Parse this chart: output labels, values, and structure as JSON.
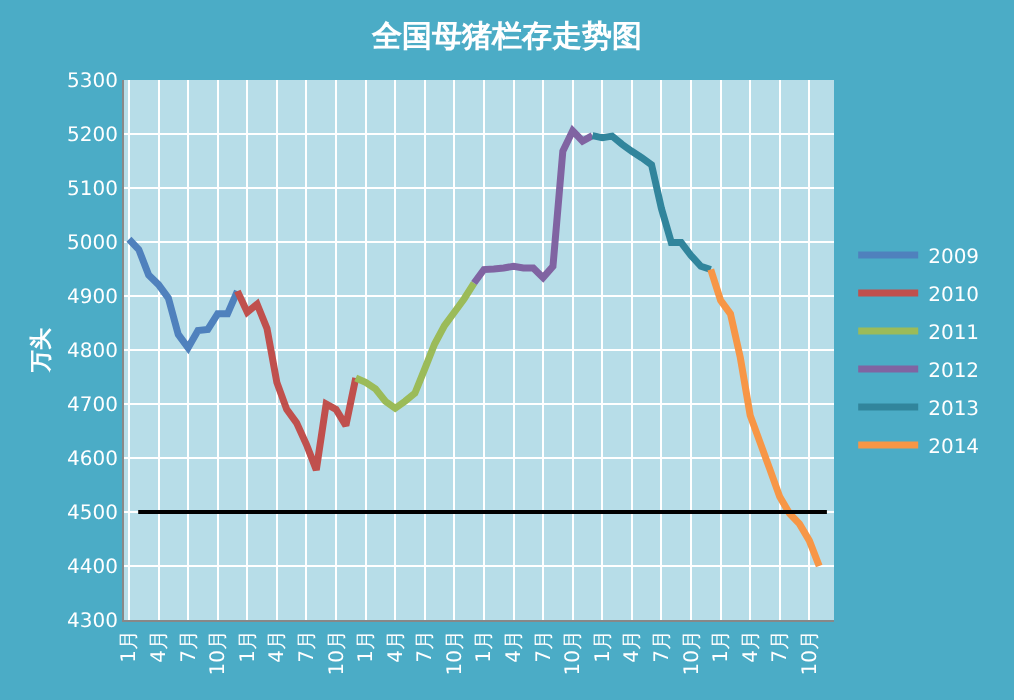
{
  "chart_data": {
    "type": "line",
    "title": "全国母猪栏存走势图",
    "ylabel": "万头",
    "categories": [
      "1月",
      null,
      null,
      "4月",
      null,
      null,
      "7月",
      null,
      null,
      "10月",
      null,
      null,
      "1月",
      null,
      null,
      "4月",
      null,
      null,
      "7月",
      null,
      null,
      "10月",
      null,
      null,
      "1月",
      null,
      null,
      "4月",
      null,
      null,
      "7月",
      null,
      null,
      "10月",
      null,
      null,
      "1月",
      null,
      null,
      "4月",
      null,
      null,
      "7月",
      null,
      null,
      "10月",
      null,
      null,
      "1月",
      null,
      null,
      "4月",
      null,
      null,
      "7月",
      null,
      null,
      "10月",
      null,
      null,
      "1月",
      null,
      null,
      "4月",
      null,
      null,
      "7月",
      null,
      null,
      "10月",
      null,
      null
    ],
    "series": [
      {
        "name": "2009",
        "color": "#4f81bd",
        "values": [
          5005,
          4986,
          4939,
          4921,
          4896,
          4829,
          4804,
          4836,
          4838,
          4867,
          4867,
          4909,
          null,
          null,
          null,
          null,
          null,
          null,
          null,
          null,
          null,
          null,
          null,
          null,
          null,
          null,
          null,
          null,
          null,
          null,
          null,
          null,
          null,
          null,
          null,
          null,
          null,
          null,
          null,
          null,
          null,
          null,
          null,
          null,
          null,
          null,
          null,
          null,
          null,
          null,
          null,
          null,
          null,
          null,
          null,
          null,
          null,
          null,
          null,
          null,
          null,
          null,
          null,
          null,
          null,
          null,
          null,
          null,
          null,
          null,
          null,
          null
        ]
      },
      {
        "name": "2010",
        "color": "#c0504d",
        "values": [
          null,
          null,
          null,
          null,
          null,
          null,
          null,
          null,
          null,
          null,
          null,
          4909,
          4870,
          4885,
          4840,
          4740,
          4690,
          4665,
          4625,
          4578,
          4700,
          4690,
          4660,
          4748,
          null,
          null,
          null,
          null,
          null,
          null,
          null,
          null,
          null,
          null,
          null,
          null,
          null,
          null,
          null,
          null,
          null,
          null,
          null,
          null,
          null,
          null,
          null,
          null,
          null,
          null,
          null,
          null,
          null,
          null,
          null,
          null,
          null,
          null,
          null,
          null,
          null,
          null,
          null,
          null,
          null,
          null,
          null,
          null,
          null,
          null,
          null,
          null
        ]
      },
      {
        "name": "2011",
        "color": "#9bbb59",
        "values": [
          null,
          null,
          null,
          null,
          null,
          null,
          null,
          null,
          null,
          null,
          null,
          null,
          null,
          null,
          null,
          null,
          null,
          null,
          null,
          null,
          null,
          null,
          null,
          4748,
          4740,
          4728,
          4705,
          4692,
          4705,
          4720,
          4765,
          4811,
          4845,
          4870,
          4895,
          4924,
          null,
          null,
          null,
          null,
          null,
          null,
          null,
          null,
          null,
          null,
          null,
          null,
          null,
          null,
          null,
          null,
          null,
          null,
          null,
          null,
          null,
          null,
          null,
          null,
          null,
          null,
          null,
          null,
          null,
          null,
          null,
          null,
          null,
          null,
          null,
          null
        ]
      },
      {
        "name": "2012",
        "color": "#8064a2",
        "values": [
          null,
          null,
          null,
          null,
          null,
          null,
          null,
          null,
          null,
          null,
          null,
          null,
          null,
          null,
          null,
          null,
          null,
          null,
          null,
          null,
          null,
          null,
          null,
          null,
          null,
          null,
          null,
          null,
          null,
          null,
          null,
          null,
          null,
          null,
          null,
          4924,
          4949,
          4950,
          4952,
          4955,
          4952,
          4952,
          4934,
          4955,
          5168,
          5206,
          5187,
          5197,
          null,
          null,
          null,
          null,
          null,
          null,
          null,
          null,
          null,
          null,
          null,
          null,
          null,
          null,
          null,
          null,
          null,
          null,
          null,
          null,
          null,
          null,
          null,
          null
        ]
      },
      {
        "name": "2013",
        "color": "#31859c",
        "values": [
          null,
          null,
          null,
          null,
          null,
          null,
          null,
          null,
          null,
          null,
          null,
          null,
          null,
          null,
          null,
          null,
          null,
          null,
          null,
          null,
          null,
          null,
          null,
          null,
          null,
          null,
          null,
          null,
          null,
          null,
          null,
          null,
          null,
          null,
          null,
          null,
          null,
          null,
          null,
          null,
          null,
          null,
          null,
          null,
          null,
          null,
          null,
          5197,
          5193,
          5196,
          5181,
          5168,
          5156,
          5143,
          5062,
          4999,
          4999,
          4975,
          4955,
          4949,
          null,
          null,
          null,
          null,
          null,
          null,
          null,
          null,
          null,
          null,
          null,
          null
        ]
      },
      {
        "name": "2014",
        "color": "#f79646",
        "values": [
          null,
          null,
          null,
          null,
          null,
          null,
          null,
          null,
          null,
          null,
          null,
          null,
          null,
          null,
          null,
          null,
          null,
          null,
          null,
          null,
          null,
          null,
          null,
          null,
          null,
          null,
          null,
          null,
          null,
          null,
          null,
          null,
          null,
          null,
          null,
          null,
          null,
          null,
          null,
          null,
          null,
          null,
          null,
          null,
          null,
          null,
          null,
          null,
          null,
          null,
          null,
          null,
          null,
          null,
          null,
          null,
          null,
          null,
          null,
          4949,
          4892,
          4867,
          4786,
          4679,
          4629,
          4579,
          4528,
          4497,
          4478,
          4447,
          4400,
          null
        ]
      }
    ],
    "ylim": [
      4300,
      5300
    ],
    "yticks": [
      4300,
      4400,
      4500,
      4600,
      4700,
      4800,
      4900,
      5000,
      5100,
      5200,
      5300
    ],
    "ref_lines": [
      {
        "axis": "y",
        "value": 4500,
        "color": "#000000"
      }
    ],
    "grid": true,
    "legend": "right",
    "marker": "none",
    "line_style": "solid"
  }
}
